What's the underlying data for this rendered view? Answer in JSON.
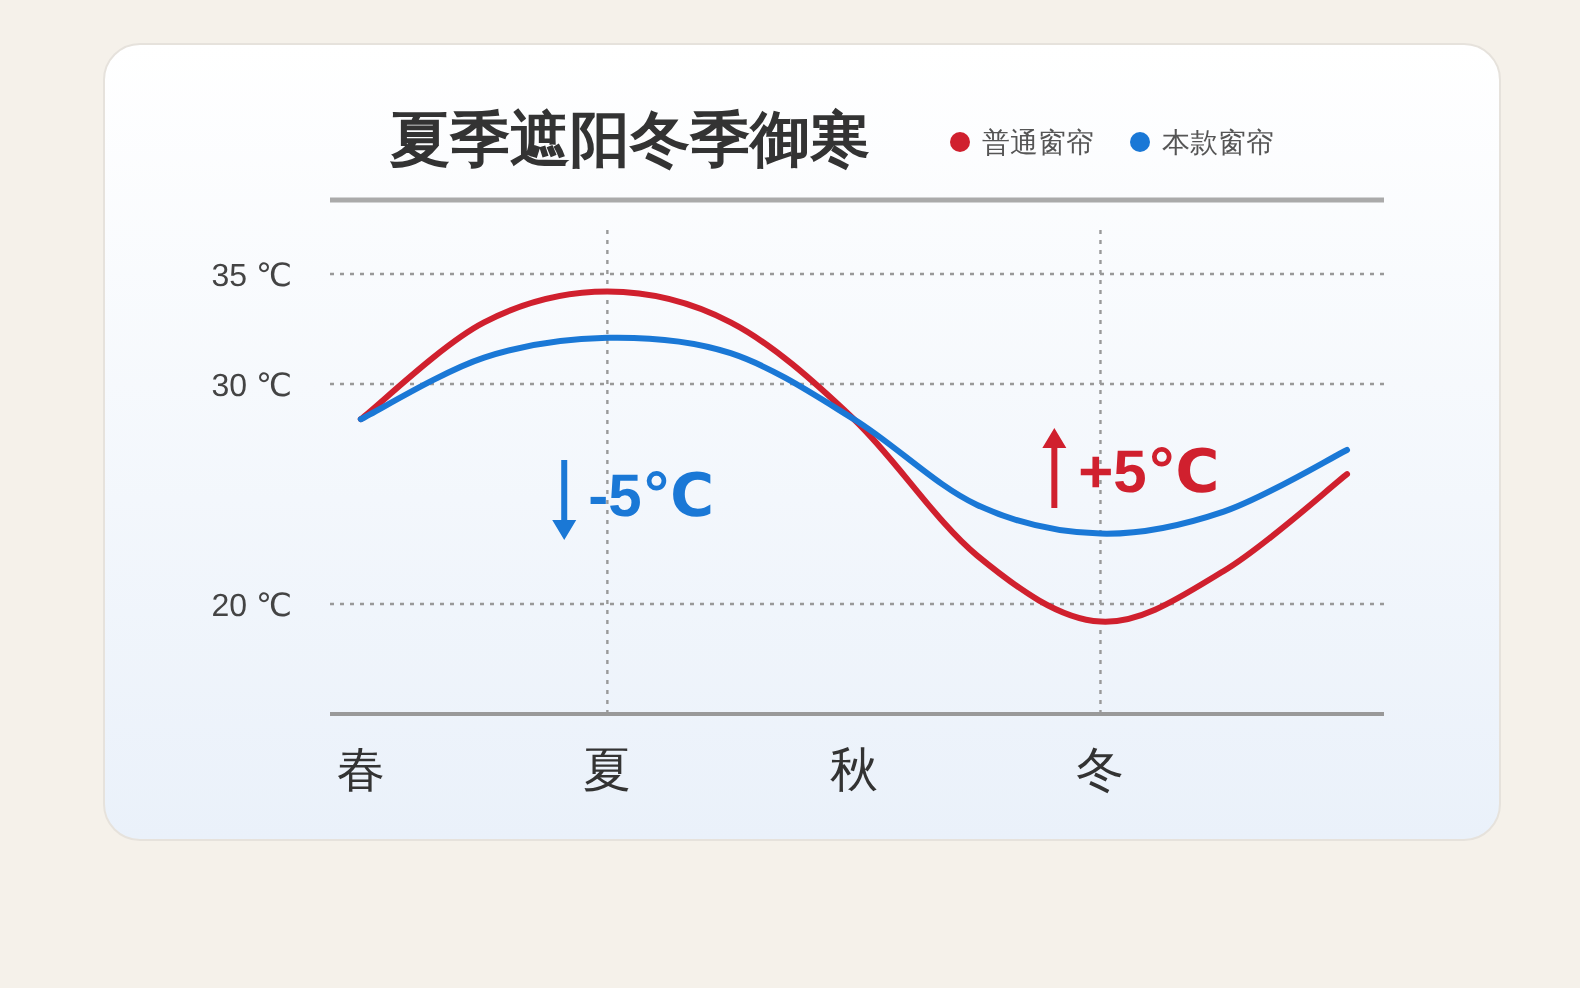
{
  "chart_data": {
    "type": "line",
    "title": "夏季遮阳冬季御寒",
    "categories": [
      "春",
      null,
      "夏",
      null,
      "秋",
      null,
      "冬",
      null,
      null
    ],
    "ylim": [
      15,
      37
    ],
    "yticks": [
      {
        "value": 20,
        "label": "20 ℃"
      },
      {
        "value": 30,
        "label": "30 ℃"
      },
      {
        "value": 35,
        "label": "35 ℃"
      }
    ],
    "series": [
      {
        "name": "普通窗帘",
        "color": "#d0202e",
        "values": [
          28.4,
          32.8,
          34.2,
          32.8,
          28.4,
          22.2,
          19.2,
          21.5,
          25.9
        ]
      },
      {
        "name": "本款窗帘",
        "color": "#1a78d6",
        "values": [
          28.4,
          31.2,
          32.1,
          31.4,
          28.4,
          24.5,
          23.2,
          24.2,
          27.0
        ]
      }
    ],
    "annotations": [
      "-5℃",
      "+5℃"
    ],
    "ref_lines": [
      {
        "axis": "x",
        "value": "夏",
        "line_style": "dotted"
      },
      {
        "axis": "x",
        "value": "冬",
        "line_style": "dotted"
      }
    ],
    "grid": "y",
    "legend": "top right",
    "line_style": "solid",
    "marker": "none"
  }
}
